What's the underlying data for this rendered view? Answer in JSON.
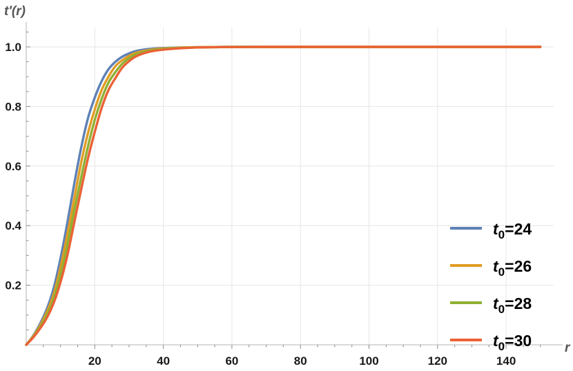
{
  "chart_data": {
    "type": "line",
    "title": "",
    "xlabel": "r",
    "ylabel": "t′(r)",
    "xlim": [
      0,
      150
    ],
    "ylim": [
      0,
      1.05
    ],
    "grid": true,
    "legend_position": "bottom-right",
    "x_ticks": [
      {
        "value": 20,
        "label": "20"
      },
      {
        "value": 40,
        "label": "40"
      },
      {
        "value": 60,
        "label": "60"
      },
      {
        "value": 80,
        "label": "80"
      },
      {
        "value": 100,
        "label": "100"
      },
      {
        "value": 120,
        "label": "120"
      },
      {
        "value": 140,
        "label": "140"
      }
    ],
    "y_ticks": [
      {
        "value": 0.2,
        "label": "0.2"
      },
      {
        "value": 0.4,
        "label": "0.4"
      },
      {
        "value": 0.6,
        "label": "0.6"
      },
      {
        "value": 0.8,
        "label": "0.8"
      },
      {
        "value": 1.0,
        "label": "1.0"
      }
    ],
    "x": [
      0,
      2,
      4,
      6,
      8,
      10,
      12,
      14,
      16,
      18,
      20,
      22,
      24,
      26,
      28,
      30,
      32,
      35,
      38,
      42,
      46,
      50,
      55,
      60,
      70,
      80,
      100,
      120,
      150
    ],
    "series": [
      {
        "name": "24",
        "legend_prefix": "t",
        "legend_sub": "0",
        "legend_suffix": "=24",
        "color": "#5E81B5",
        "values": [
          0,
          0.03,
          0.07,
          0.12,
          0.19,
          0.29,
          0.41,
          0.54,
          0.66,
          0.76,
          0.83,
          0.885,
          0.925,
          0.95,
          0.967,
          0.978,
          0.986,
          0.992,
          0.995,
          0.997,
          0.998,
          0.999,
          0.9995,
          1.0,
          1.0,
          1.0,
          1.0,
          1.0,
          1.0
        ]
      },
      {
        "name": "26",
        "legend_prefix": "t",
        "legend_sub": "0",
        "legend_suffix": "=26",
        "color": "#E19C24",
        "values": [
          0,
          0.028,
          0.064,
          0.11,
          0.17,
          0.26,
          0.37,
          0.49,
          0.61,
          0.71,
          0.79,
          0.855,
          0.9,
          0.935,
          0.955,
          0.97,
          0.98,
          0.988,
          0.993,
          0.996,
          0.998,
          0.999,
          0.9995,
          1.0,
          1.0,
          1.0,
          1.0,
          1.0,
          1.0
        ]
      },
      {
        "name": "28",
        "legend_prefix": "t",
        "legend_sub": "0",
        "legend_suffix": "=28",
        "color": "#8FB032",
        "values": [
          0,
          0.026,
          0.059,
          0.1,
          0.155,
          0.235,
          0.335,
          0.45,
          0.56,
          0.665,
          0.755,
          0.825,
          0.88,
          0.915,
          0.943,
          0.962,
          0.975,
          0.985,
          0.991,
          0.995,
          0.997,
          0.998,
          0.999,
          1.0,
          1.0,
          1.0,
          1.0,
          1.0,
          1.0
        ]
      },
      {
        "name": "30",
        "legend_prefix": "t",
        "legend_sub": "0",
        "legend_suffix": "=30",
        "color": "#EB6235",
        "values": [
          0,
          0.024,
          0.054,
          0.09,
          0.14,
          0.21,
          0.3,
          0.41,
          0.52,
          0.625,
          0.715,
          0.795,
          0.855,
          0.895,
          0.93,
          0.952,
          0.968,
          0.981,
          0.988,
          0.993,
          0.996,
          0.998,
          0.999,
          0.9995,
          1.0,
          1.0,
          1.0,
          1.0,
          1.0
        ]
      }
    ]
  }
}
